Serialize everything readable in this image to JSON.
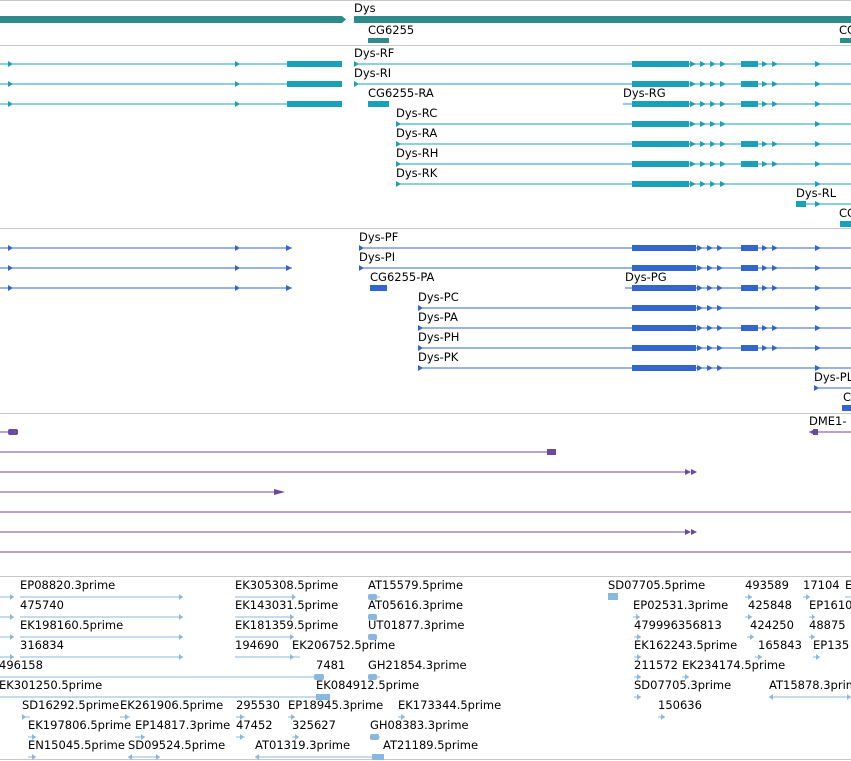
{
  "colors": {
    "gene": "#2e8b8b",
    "transcript": "#1aa0b8",
    "protein": "#3366cc",
    "purple": "#6a4a9c",
    "est": "#88b8e0",
    "divider": "#c8c8c8"
  },
  "gene_track": {
    "labels": [
      {
        "id": "dys",
        "text": "Dys"
      },
      {
        "id": "cg6255",
        "text": "CG6255"
      },
      {
        "id": "cg-cut",
        "text": "CG"
      }
    ]
  },
  "transcript_track": {
    "labels": [
      {
        "id": "dys-rf",
        "text": "Dys-RF"
      },
      {
        "id": "dys-ri",
        "text": "Dys-RI"
      },
      {
        "id": "cg6255-ra",
        "text": "CG6255-RA"
      },
      {
        "id": "dys-rg",
        "text": "Dys-RG"
      },
      {
        "id": "dys-rc",
        "text": "Dys-RC"
      },
      {
        "id": "dys-ra",
        "text": "Dys-RA"
      },
      {
        "id": "dys-rh",
        "text": "Dys-RH"
      },
      {
        "id": "dys-rk",
        "text": "Dys-RK"
      },
      {
        "id": "dys-rl",
        "text": "Dys-RL"
      },
      {
        "id": "cg-cut2",
        "text": "CC"
      }
    ]
  },
  "protein_track": {
    "labels": [
      {
        "id": "dys-pf",
        "text": "Dys-PF"
      },
      {
        "id": "dys-pi",
        "text": "Dys-PI"
      },
      {
        "id": "cg6255-pa",
        "text": "CG6255-PA"
      },
      {
        "id": "dys-pg",
        "text": "Dys-PG"
      },
      {
        "id": "dys-pc",
        "text": "Dys-PC"
      },
      {
        "id": "dys-pa",
        "text": "Dys-PA"
      },
      {
        "id": "dys-ph",
        "text": "Dys-PH"
      },
      {
        "id": "dys-pk",
        "text": "Dys-PK"
      },
      {
        "id": "dys-pl",
        "text": "Dys-PL"
      },
      {
        "id": "c-cut",
        "text": "C"
      }
    ]
  },
  "purple_track": {
    "labels": [
      {
        "id": "dme1",
        "text": "DME1-"
      }
    ]
  },
  "est_track": {
    "labels": [
      {
        "id": "e1",
        "text": "EP08820.3prime"
      },
      {
        "id": "e2",
        "text": "EK305308.5prime"
      },
      {
        "id": "e3",
        "text": "AT15579.5prime"
      },
      {
        "id": "e4",
        "text": "SD07705.5prime"
      },
      {
        "id": "e5",
        "text": "493589"
      },
      {
        "id": "e6",
        "text": "17104"
      },
      {
        "id": "e7",
        "text": "E"
      },
      {
        "id": "e8",
        "text": "475740"
      },
      {
        "id": "e9",
        "text": "EK143031.5prime"
      },
      {
        "id": "e10",
        "text": "AT05616.3prime"
      },
      {
        "id": "e11",
        "text": "EP02531.3prime"
      },
      {
        "id": "e12",
        "text": "425848"
      },
      {
        "id": "e13",
        "text": "EP1610"
      },
      {
        "id": "e14",
        "text": "EK198160.5prime"
      },
      {
        "id": "e15",
        "text": "EK181359.5prime"
      },
      {
        "id": "e16",
        "text": "UT01877.3prime"
      },
      {
        "id": "e17",
        "text": "479996356813"
      },
      {
        "id": "e18",
        "text": "424250"
      },
      {
        "id": "e19",
        "text": "48875"
      },
      {
        "id": "e20",
        "text": "316834"
      },
      {
        "id": "e21",
        "text": "194690"
      },
      {
        "id": "e22",
        "text": "EK206752.5prime"
      },
      {
        "id": "e23",
        "text": "EK162243.5prime"
      },
      {
        "id": "e24",
        "text": "165843"
      },
      {
        "id": "e25",
        "text": "EP135"
      },
      {
        "id": "e26",
        "text": "496158"
      },
      {
        "id": "e27",
        "text": "7481"
      },
      {
        "id": "e28",
        "text": "GH21854.3prime"
      },
      {
        "id": "e29",
        "text": "211572"
      },
      {
        "id": "e30",
        "text": "EK234174.5prime"
      },
      {
        "id": "e31",
        "text": "EK301250.5prime"
      },
      {
        "id": "e32",
        "text": "EK084912.5prime"
      },
      {
        "id": "e33",
        "text": "SD07705.3prime"
      },
      {
        "id": "e34",
        "text": "AT15878.3prime"
      },
      {
        "id": "e35",
        "text": "SD16292.5prime"
      },
      {
        "id": "e36",
        "text": "EK261906.5prime"
      },
      {
        "id": "e37",
        "text": "295530"
      },
      {
        "id": "e38",
        "text": "EP18945.3prime"
      },
      {
        "id": "e39",
        "text": "EK173344.5prime"
      },
      {
        "id": "e40",
        "text": "150636"
      },
      {
        "id": "e41",
        "text": "EK197806.5prime"
      },
      {
        "id": "e42",
        "text": "EP14817.3prime"
      },
      {
        "id": "e43",
        "text": "47452"
      },
      {
        "id": "e44",
        "text": "325627"
      },
      {
        "id": "e45",
        "text": "GH08383.3prime"
      },
      {
        "id": "e46",
        "text": "EN15045.5prime"
      },
      {
        "id": "e47",
        "text": "SD09524.5prime"
      },
      {
        "id": "e48",
        "text": "AT01319.3prime"
      },
      {
        "id": "e49",
        "text": "AT21189.5prime"
      }
    ]
  }
}
